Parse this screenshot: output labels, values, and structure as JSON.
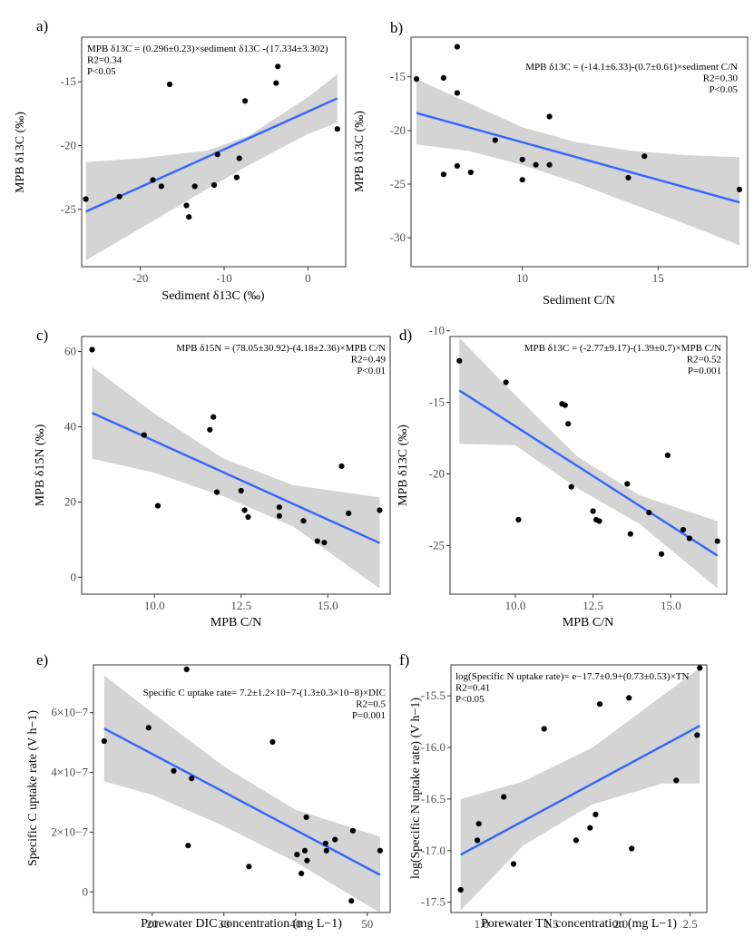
{
  "chart_data": [
    {
      "type": "scatter",
      "panel_label": "a)",
      "xlabel": "Sediment δ13C (‰)",
      "ylabel": "MPB δ13C (‰)",
      "xlim": [
        -27,
        4.5
      ],
      "ylim": [
        -29.5,
        -11.5
      ],
      "xticks": [
        -20,
        -10,
        0
      ],
      "xtick_labels": [
        "-20",
        "-10",
        "0"
      ],
      "yticks": [
        -25,
        -20,
        -15
      ],
      "ytick_labels": [
        "-25",
        "-20",
        "-15"
      ],
      "annotations": [
        "MPB δ13C = (0.296±0.23)×sediment δ13C -(17.334±3.302)",
        "R2=0.34",
        "P<0.05"
      ],
      "points": [
        [
          -26.5,
          -24.2
        ],
        [
          -22.5,
          -24
        ],
        [
          -18.5,
          -22.7
        ],
        [
          -17.5,
          -23.2
        ],
        [
          -16.5,
          -15.2
        ],
        [
          -14.5,
          -24.7
        ],
        [
          -14.2,
          -25.6
        ],
        [
          -13.5,
          -23.2
        ],
        [
          -11.2,
          -23.1
        ],
        [
          -10.8,
          -20.7
        ],
        [
          -8.5,
          -22.5
        ],
        [
          -8.2,
          -21
        ],
        [
          -7.5,
          -16.5
        ],
        [
          -3.8,
          -15.1
        ],
        [
          -3.6,
          -13.8
        ],
        [
          3.5,
          -18.7
        ]
      ],
      "fit": {
        "x": [
          -26.5,
          3.5
        ],
        "y": [
          -25.18,
          -16.3
        ]
      },
      "band": {
        "x": [
          -26.5,
          -20,
          -12,
          -7,
          0,
          3.5
        ],
        "lower": [
          -29.0,
          -26.5,
          -23.4,
          -21.5,
          -19.1,
          -18.2
        ],
        "upper": [
          -21.3,
          -21.0,
          -20.4,
          -19.2,
          -16.2,
          -14.4
        ]
      }
    },
    {
      "type": "scatter",
      "panel_label": "b)",
      "xlabel": "Sediment C/N",
      "ylabel": "MPB δ13C (‰)",
      "xlim": [
        5.9,
        18.3
      ],
      "ylim": [
        -32.7,
        -11.3
      ],
      "xticks": [
        10,
        15
      ],
      "xtick_labels": [
        "10",
        "15"
      ],
      "yticks": [
        -30,
        -25,
        -20,
        -15
      ],
      "ytick_labels": [
        "-30",
        "-25",
        "-20",
        "-15"
      ],
      "annotations": [
        "MPB δ13C = (-14.1±6.33)-(0.7±0.61)×sediment C/N",
        "R2=0.30",
        "P<0.05"
      ],
      "points": [
        [
          6.1,
          -15.2
        ],
        [
          7.1,
          -15.1
        ],
        [
          7.1,
          -24.1
        ],
        [
          7.6,
          -12.2
        ],
        [
          7.6,
          -16.5
        ],
        [
          7.6,
          -23.3
        ],
        [
          8.1,
          -23.9
        ],
        [
          9,
          -20.9
        ],
        [
          10,
          -22.7
        ],
        [
          10,
          -24.6
        ],
        [
          10.5,
          -23.2
        ],
        [
          11,
          -18.7
        ],
        [
          11,
          -23.2
        ],
        [
          13.9,
          -24.4
        ],
        [
          14.5,
          -22.4
        ],
        [
          18,
          -25.5
        ]
      ],
      "fit": {
        "x": [
          6.1,
          18
        ],
        "y": [
          -18.37,
          -26.7
        ]
      },
      "band": {
        "x": [
          6.1,
          8,
          10,
          12,
          14,
          16,
          18
        ],
        "lower": [
          -21.3,
          -21.9,
          -23.2,
          -24.9,
          -26.8,
          -28.7,
          -30.7
        ],
        "upper": [
          -15.2,
          -17.4,
          -19.7,
          -21.1,
          -21.9,
          -22.3,
          -22.5
        ]
      }
    },
    {
      "type": "scatter",
      "panel_label": "c)",
      "xlabel": "MPB C/N",
      "ylabel": "MPB δ15N (‰)",
      "xlim": [
        7.9,
        16.8
      ],
      "ylim": [
        -4.5,
        64
      ],
      "xticks": [
        10,
        12.5,
        15
      ],
      "xtick_labels": [
        "10.0",
        "12.5",
        "15.0"
      ],
      "yticks": [
        0,
        20,
        40,
        60
      ],
      "ytick_labels": [
        "0",
        "20",
        "40",
        "60"
      ],
      "annotations": [
        "MPB δ15N = (78.05±30.92)-(4.18±2.36)×MPB C/N",
        "R2=0.49",
        "P<0.01"
      ],
      "points": [
        [
          8.2,
          60.5
        ],
        [
          9.7,
          37.8
        ],
        [
          10.1,
          19
        ],
        [
          11.6,
          39.2
        ],
        [
          11.7,
          42.6
        ],
        [
          11.8,
          22.6
        ],
        [
          12.5,
          23
        ],
        [
          12.6,
          17.8
        ],
        [
          12.7,
          16
        ],
        [
          13.6,
          16.3
        ],
        [
          13.6,
          18.6
        ],
        [
          14.3,
          15
        ],
        [
          14.7,
          9.6
        ],
        [
          14.9,
          9.2
        ],
        [
          15.4,
          29.5
        ],
        [
          15.6,
          17
        ],
        [
          16.5,
          17.8
        ]
      ],
      "fit": {
        "x": [
          8.2,
          16.5
        ],
        "y": [
          43.7,
          9.08
        ]
      },
      "band": {
        "x": [
          8.2,
          10,
          12,
          14,
          16.5
        ],
        "lower": [
          31.5,
          27.8,
          21.5,
          13.5,
          -3.0
        ],
        "upper": [
          56.0,
          43.5,
          31.5,
          24.5,
          21.2
        ]
      }
    },
    {
      "type": "scatter",
      "panel_label": "d)",
      "xlabel": "MPB C/N",
      "ylabel": "MPB δ13C (‰)",
      "xlim": [
        7.9,
        16.8
      ],
      "ylim": [
        -28.4,
        -10.4
      ],
      "xticks": [
        10,
        12.5,
        15
      ],
      "xtick_labels": [
        "10.0",
        "12.5",
        "15.0"
      ],
      "yticks": [
        -25,
        -20,
        -15,
        -10
      ],
      "ytick_labels": [
        "-25",
        "-20",
        "-15",
        "-10"
      ],
      "annotations": [
        "MPB δ13C = (-2.77±9.17)-(1.39±0.7)×MPB C/N",
        "R2=0.52",
        "P=0.001"
      ],
      "points": [
        [
          8.2,
          -12.1
        ],
        [
          9.7,
          -13.6
        ],
        [
          10.1,
          -23.2
        ],
        [
          11.5,
          -15.1
        ],
        [
          11.6,
          -15.2
        ],
        [
          11.7,
          -16.5
        ],
        [
          11.8,
          -20.9
        ],
        [
          12.5,
          -22.6
        ],
        [
          12.6,
          -23.2
        ],
        [
          12.7,
          -23.3
        ],
        [
          13.6,
          -20.7
        ],
        [
          13.7,
          -24.2
        ],
        [
          14.3,
          -22.7
        ],
        [
          14.7,
          -25.6
        ],
        [
          14.9,
          -18.7
        ],
        [
          15.4,
          -23.9
        ],
        [
          15.6,
          -24.5
        ],
        [
          16.5,
          -24.7
        ]
      ],
      "fit": {
        "x": [
          8.2,
          16.5
        ],
        "y": [
          -14.17,
          -25.71
        ]
      },
      "band": {
        "x": [
          8.2,
          10,
          12,
          14,
          16.5
        ],
        "lower": [
          -17.9,
          -18.0,
          -21.0,
          -23.5,
          -28.0
        ],
        "upper": [
          -10.5,
          -14.5,
          -18.8,
          -21.5,
          -23.3
        ]
      }
    },
    {
      "type": "scatter",
      "panel_label": "e)",
      "xlabel": "Porewater DIC concentration (mg L−1)",
      "ylabel": "Specific C uptake rate (V h−1)",
      "xlim": [
        11.8,
        53.2
      ],
      "ylim": [
        -6.9e-08,
        7.6e-07
      ],
      "xticks": [
        20,
        30,
        40,
        50
      ],
      "xtick_labels": [
        "20",
        "30",
        "40",
        "50"
      ],
      "yticks": [
        0,
        2e-07,
        4e-07,
        6e-07
      ],
      "ytick_labels": [
        "0",
        "2×10−7",
        "4×10−7",
        "6×10−7"
      ],
      "annotations": [
        "Specific C uptake rate= 7.2±1.2×10−7-(1.3±0.3×10−8)×DIC",
        "R2=0.5",
        "P=0.001"
      ],
      "points": [
        [
          13.3,
          5.05e-07
        ],
        [
          19.5,
          5.5e-07
        ],
        [
          23,
          4.05e-07
        ],
        [
          24.8,
          7.45e-07
        ],
        [
          25,
          1.55e-07
        ],
        [
          25.5,
          3.8e-07
        ],
        [
          33.5,
          8.5e-08
        ],
        [
          36.8,
          5.02e-07
        ],
        [
          40.2,
          1.25e-07
        ],
        [
          40.8,
          6.2e-08
        ],
        [
          41.3,
          1.38e-07
        ],
        [
          41.5,
          2.5e-07
        ],
        [
          41.6,
          1.05e-07
        ],
        [
          44.2,
          1.62e-07
        ],
        [
          44.3,
          1.38e-07
        ],
        [
          45.5,
          1.75e-07
        ],
        [
          47.8,
          -3e-08
        ],
        [
          48,
          2.05e-07
        ],
        [
          51.8,
          1.38e-07
        ]
      ],
      "fit": {
        "x": [
          13.3,
          51.8
        ],
        "y": [
          5.47e-07,
          5.7e-08
        ]
      },
      "band": {
        "x": [
          13.3,
          20,
          30,
          40,
          51.8
        ],
        "lower": [
          3.7e-07,
          3.25e-07,
          2.2e-07,
          1e-07,
          -7e-08
        ],
        "upper": [
          7.25e-07,
          6e-07,
          4.2e-07,
          2.75e-07,
          1.85e-07
        ]
      }
    },
    {
      "type": "scatter",
      "panel_label": "f)",
      "xlabel": "Porewater TN concentration (mg L−1)",
      "ylabel": "log(Specific N uptake rate) (V h−1)",
      "xlim": [
        0.78,
        2.62
      ],
      "ylim": [
        -17.6,
        -15.2
      ],
      "xticks": [
        1.0,
        1.5,
        2.0,
        2.5
      ],
      "xtick_labels": [
        "1.0",
        "1.5",
        "2.0",
        "2.5"
      ],
      "yticks": [
        -17.5,
        -17.0,
        -16.5,
        -16.0,
        -15.5
      ],
      "ytick_labels": [
        "-17.5",
        "-17.0",
        "-16.5",
        "-16.0",
        "-15.5"
      ],
      "annotations": [
        "log(Specific N uptake rate)= e−17.7±0.9+(0.73±0.53)×TN",
        "R2=0.41",
        "P<0.05"
      ],
      "points": [
        [
          0.85,
          -17.38
        ],
        [
          0.97,
          -16.9
        ],
        [
          0.98,
          -16.74
        ],
        [
          1.16,
          -16.48
        ],
        [
          1.23,
          -17.13
        ],
        [
          1.45,
          -15.82
        ],
        [
          1.68,
          -16.9
        ],
        [
          1.78,
          -16.78
        ],
        [
          1.82,
          -16.65
        ],
        [
          1.85,
          -15.58
        ],
        [
          2.06,
          -15.52
        ],
        [
          2.08,
          -16.98
        ],
        [
          2.4,
          -16.32
        ],
        [
          2.55,
          -15.88
        ],
        [
          2.57,
          -15.23
        ]
      ],
      "fit": {
        "x": [
          0.85,
          2.57
        ],
        "y": [
          -17.04,
          -15.79
        ]
      },
      "band": {
        "x": [
          0.85,
          1.3,
          1.8,
          2.3,
          2.57
        ],
        "lower": [
          -17.58,
          -16.95,
          -16.55,
          -16.35,
          -16.35
        ],
        "upper": [
          -16.5,
          -16.33,
          -16.0,
          -15.5,
          -15.23
        ]
      }
    }
  ]
}
